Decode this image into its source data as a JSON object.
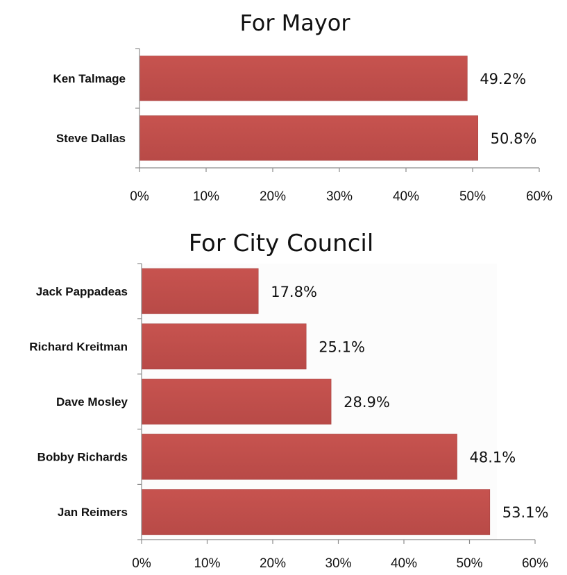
{
  "chart_data": [
    {
      "type": "bar",
      "orientation": "horizontal",
      "title": "For Mayor",
      "categories": [
        "Ken Talmage",
        "Steve Dallas"
      ],
      "values": [
        49.2,
        50.8
      ],
      "data_labels": [
        "49.2%",
        "50.8%"
      ],
      "xlim": [
        0,
        60
      ],
      "x_ticks": [
        "0%",
        "10%",
        "20%",
        "30%",
        "40%",
        "50%",
        "60%"
      ],
      "grid": false,
      "color": "#c0504d"
    },
    {
      "type": "bar",
      "orientation": "horizontal",
      "title": "For City Council",
      "categories": [
        "Jack Pappadeas",
        "Richard Kreitman",
        "Dave Mosley",
        "Bobby Richards",
        "Jan Reimers"
      ],
      "values": [
        17.8,
        25.1,
        28.9,
        48.1,
        53.1
      ],
      "data_labels": [
        "17.8%",
        "25.1%",
        "28.9%",
        "48.1%",
        "53.1%"
      ],
      "xlim": [
        0,
        60
      ],
      "x_ticks": [
        "0%",
        "10%",
        "20%",
        "30%",
        "40%",
        "50%",
        "60%"
      ],
      "grid": false,
      "color": "#c0504d"
    }
  ]
}
